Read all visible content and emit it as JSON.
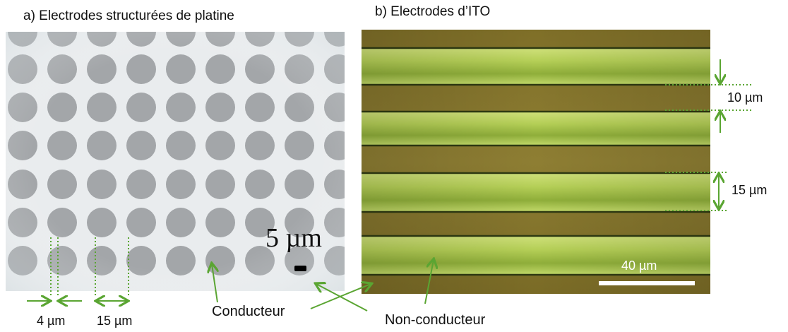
{
  "panel_a": {
    "caption": "a) Electrodes structurées de platine",
    "scale_text": "5 µm",
    "dim_small": "4 µm",
    "dim_large": "15 µm",
    "colors": {
      "background": "#e9ecee",
      "disk": "#a3a6a9"
    }
  },
  "panel_b": {
    "caption": "b) Electrodes d’ITO",
    "scale_text": "40 µm",
    "dim_gap": "10 µm",
    "dim_width": "15 µm",
    "colors": {
      "stripe": "#a8c84a",
      "gap": "#8a7a2e",
      "edge": "#2f3a12"
    }
  },
  "labels": {
    "conducteur": "Conducteur",
    "non_conducteur": "Non-conducteur"
  },
  "annotation_color": "#5aa532"
}
